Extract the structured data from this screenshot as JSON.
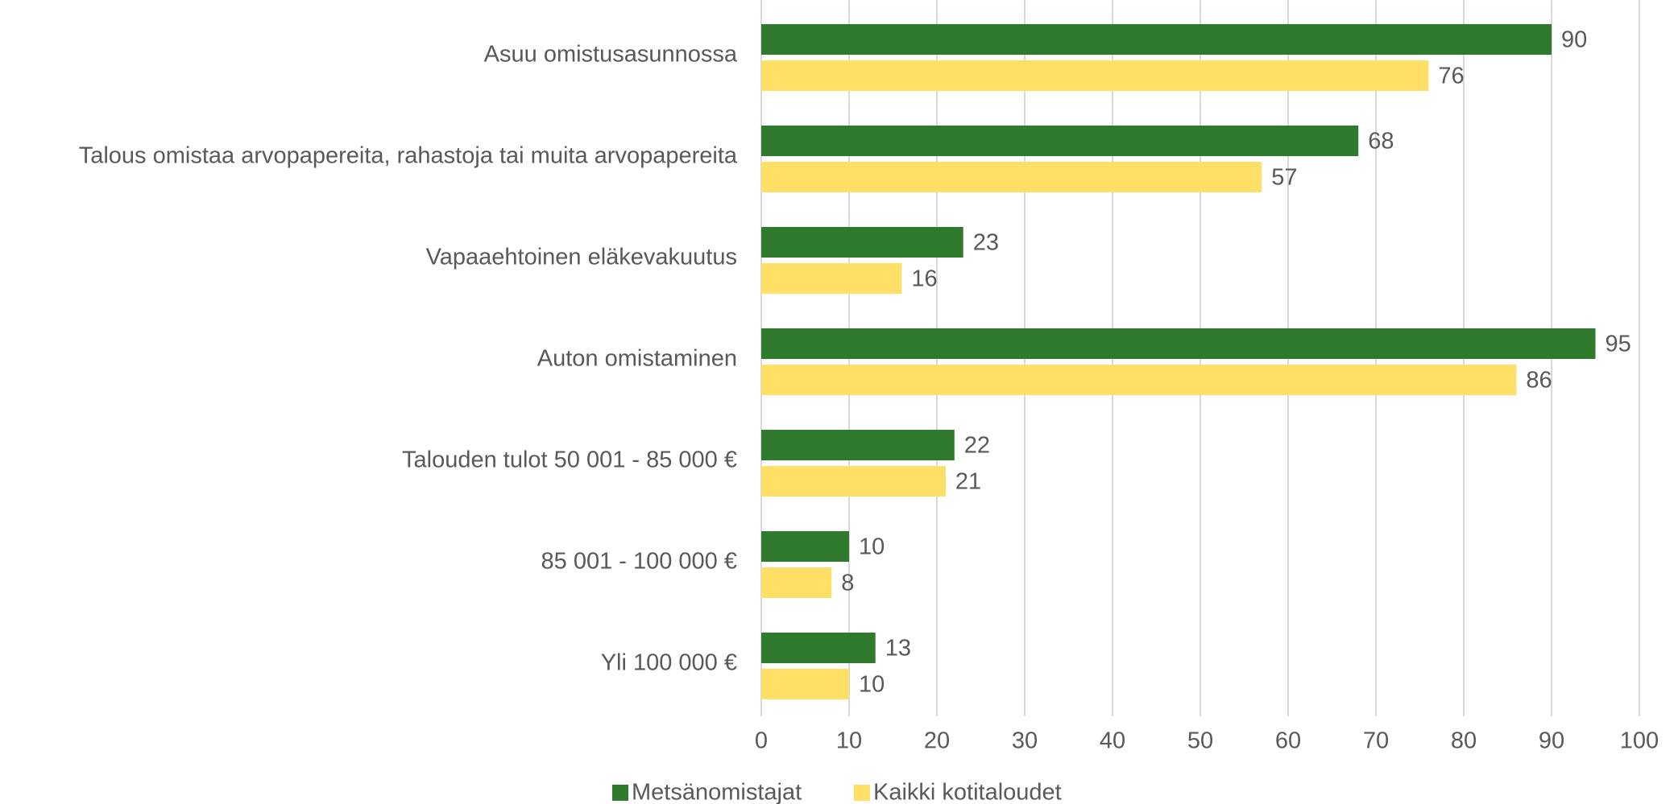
{
  "chart_data": {
    "type": "hbar",
    "categories": [
      "Asuu omistusasunnossa",
      "Talous omistaa arvopapereita, rahastoja tai muita arvopapereita",
      "Vapaaehtoinen eläkevakuutus",
      "Auton omistaminen",
      "Talouden tulot 50 001 - 85 000 €",
      "85 001 - 100 000 €",
      "Yli 100 000 €"
    ],
    "series": [
      {
        "name": "Metsänomistajat",
        "color": "#2f7a2c",
        "values": [
          90,
          68,
          23,
          95,
          22,
          10,
          13
        ]
      },
      {
        "name": "Kaikki kotitaloudet",
        "color": "#ffe066",
        "values": [
          76,
          57,
          16,
          86,
          21,
          8,
          10
        ]
      }
    ],
    "xlim": [
      0,
      100
    ],
    "xticks": [
      0,
      10,
      20,
      30,
      40,
      50,
      60,
      70,
      80,
      90,
      100
    ],
    "grid": true,
    "legend": "bottom"
  }
}
